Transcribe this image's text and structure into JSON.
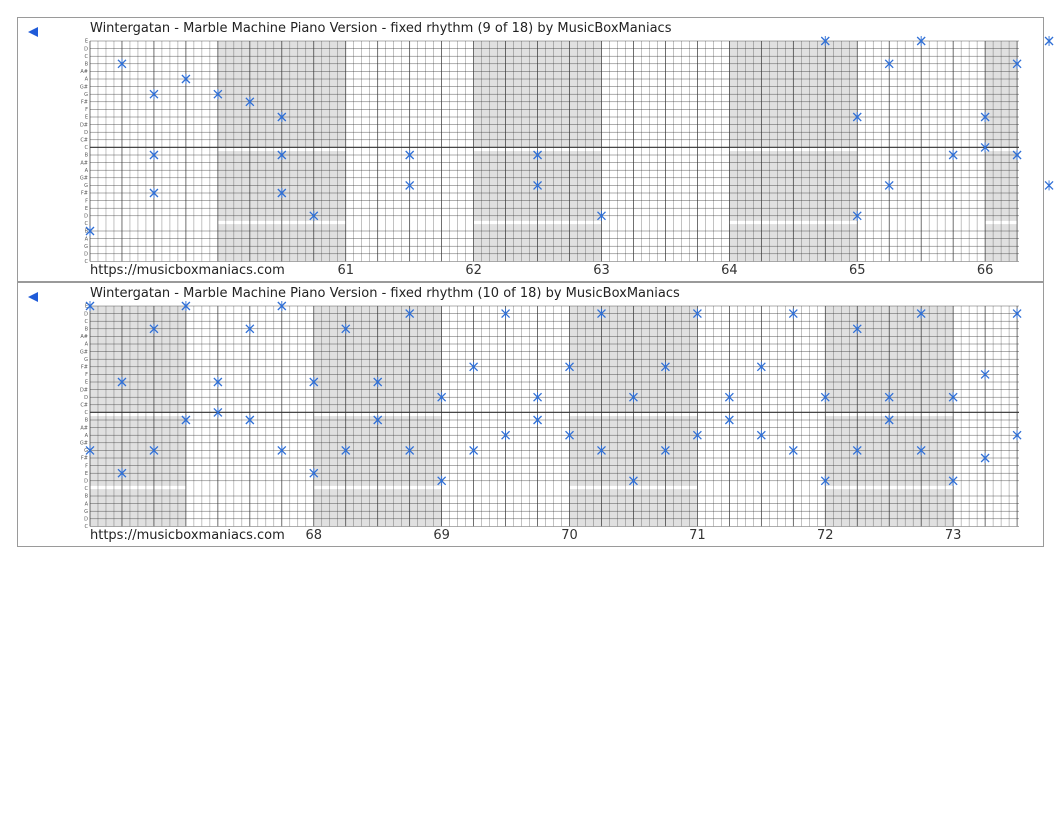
{
  "colors": {
    "grid": "#333333",
    "shade": "#e0e0e0",
    "note": "#2f6fd6",
    "back": "#1f5bd8",
    "border": "#9a9a9a"
  },
  "icons": {
    "back": "back-arrow-icon",
    "note": "note-mark-icon"
  },
  "note_labels": [
    "E",
    "D",
    "C",
    "B",
    "A#",
    "A",
    "G#",
    "G",
    "F#",
    "F",
    "E",
    "D#",
    "D",
    "C#",
    "C",
    "B",
    "A#",
    "A",
    "G#",
    "G",
    "F#",
    "F",
    "E",
    "D",
    "C",
    "B",
    "A",
    "G",
    "D",
    "C"
  ],
  "rows": [
    {
      "title": "Wintergatan - Marble Machine Piano Version - fixed rhythm (9 of 18) by MusicBoxManiacs",
      "url": "https://musicboxmaniacs.com",
      "measures": [
        {
          "label": "61",
          "beat": 8
        },
        {
          "label": "62",
          "beat": 12
        },
        {
          "label": "63",
          "beat": 16
        },
        {
          "label": "64",
          "beat": 20
        },
        {
          "label": "65",
          "beat": 24
        },
        {
          "label": "66",
          "beat": 28
        }
      ],
      "shaded": [
        [
          4,
          8
        ],
        [
          12,
          16
        ],
        [
          20,
          24
        ],
        [
          28,
          29
        ]
      ],
      "notes": [
        [
          0,
          25
        ],
        [
          1,
          3
        ],
        [
          2,
          7
        ],
        [
          2,
          15
        ],
        [
          2,
          20
        ],
        [
          3,
          5
        ],
        [
          4,
          7
        ],
        [
          5,
          8
        ],
        [
          6,
          10
        ],
        [
          6,
          15
        ],
        [
          6,
          20
        ],
        [
          7,
          23
        ],
        [
          10,
          15
        ],
        [
          10,
          19
        ],
        [
          14,
          15
        ],
        [
          14,
          19
        ],
        [
          16,
          23
        ],
        [
          23,
          0
        ],
        [
          24,
          10
        ],
        [
          24,
          23
        ],
        [
          25,
          3
        ],
        [
          25,
          19
        ],
        [
          26,
          0
        ],
        [
          27,
          15
        ],
        [
          28,
          10
        ],
        [
          28,
          14
        ],
        [
          29,
          3
        ],
        [
          29,
          15
        ],
        [
          30,
          0
        ],
        [
          30,
          19
        ]
      ]
    },
    {
      "title": "Wintergatan - Marble Machine Piano Version - fixed rhythm (10 of 18) by MusicBoxManiacs",
      "url": "https://musicboxmaniacs.com",
      "measures": [
        {
          "label": "68",
          "beat": 7
        },
        {
          "label": "69",
          "beat": 11
        },
        {
          "label": "70",
          "beat": 15
        },
        {
          "label": "71",
          "beat": 19
        },
        {
          "label": "72",
          "beat": 23
        },
        {
          "label": "73",
          "beat": 27
        }
      ],
      "shaded": [
        [
          0,
          3
        ],
        [
          7,
          11
        ],
        [
          15,
          19
        ],
        [
          23,
          27
        ]
      ],
      "notes": [
        [
          0,
          0
        ],
        [
          0,
          19
        ],
        [
          1,
          10
        ],
        [
          1,
          22
        ],
        [
          2,
          3
        ],
        [
          2,
          19
        ],
        [
          3,
          0
        ],
        [
          3,
          15
        ],
        [
          4,
          10
        ],
        [
          4,
          14
        ],
        [
          5,
          3
        ],
        [
          5,
          15
        ],
        [
          6,
          0
        ],
        [
          6,
          19
        ],
        [
          7,
          10
        ],
        [
          7,
          22
        ],
        [
          8,
          3
        ],
        [
          8,
          19
        ],
        [
          9,
          10
        ],
        [
          9,
          15
        ],
        [
          10,
          1
        ],
        [
          10,
          19
        ],
        [
          11,
          12
        ],
        [
          11,
          23
        ],
        [
          12,
          8
        ],
        [
          12,
          19
        ],
        [
          13,
          1
        ],
        [
          13,
          17
        ],
        [
          14,
          12
        ],
        [
          14,
          15
        ],
        [
          15,
          8
        ],
        [
          15,
          17
        ],
        [
          16,
          1
        ],
        [
          16,
          19
        ],
        [
          17,
          12
        ],
        [
          17,
          23
        ],
        [
          18,
          8
        ],
        [
          18,
          19
        ],
        [
          19,
          1
        ],
        [
          19,
          17
        ],
        [
          20,
          12
        ],
        [
          20,
          15
        ],
        [
          21,
          8
        ],
        [
          21,
          17
        ],
        [
          22,
          1
        ],
        [
          22,
          19
        ],
        [
          23,
          12
        ],
        [
          23,
          23
        ],
        [
          24,
          3
        ],
        [
          24,
          19
        ],
        [
          25,
          12
        ],
        [
          25,
          15
        ],
        [
          26,
          1
        ],
        [
          26,
          19
        ],
        [
          27,
          12
        ],
        [
          27,
          23
        ],
        [
          28,
          9
        ],
        [
          28,
          20
        ],
        [
          29,
          1
        ],
        [
          29,
          17
        ]
      ]
    }
  ]
}
